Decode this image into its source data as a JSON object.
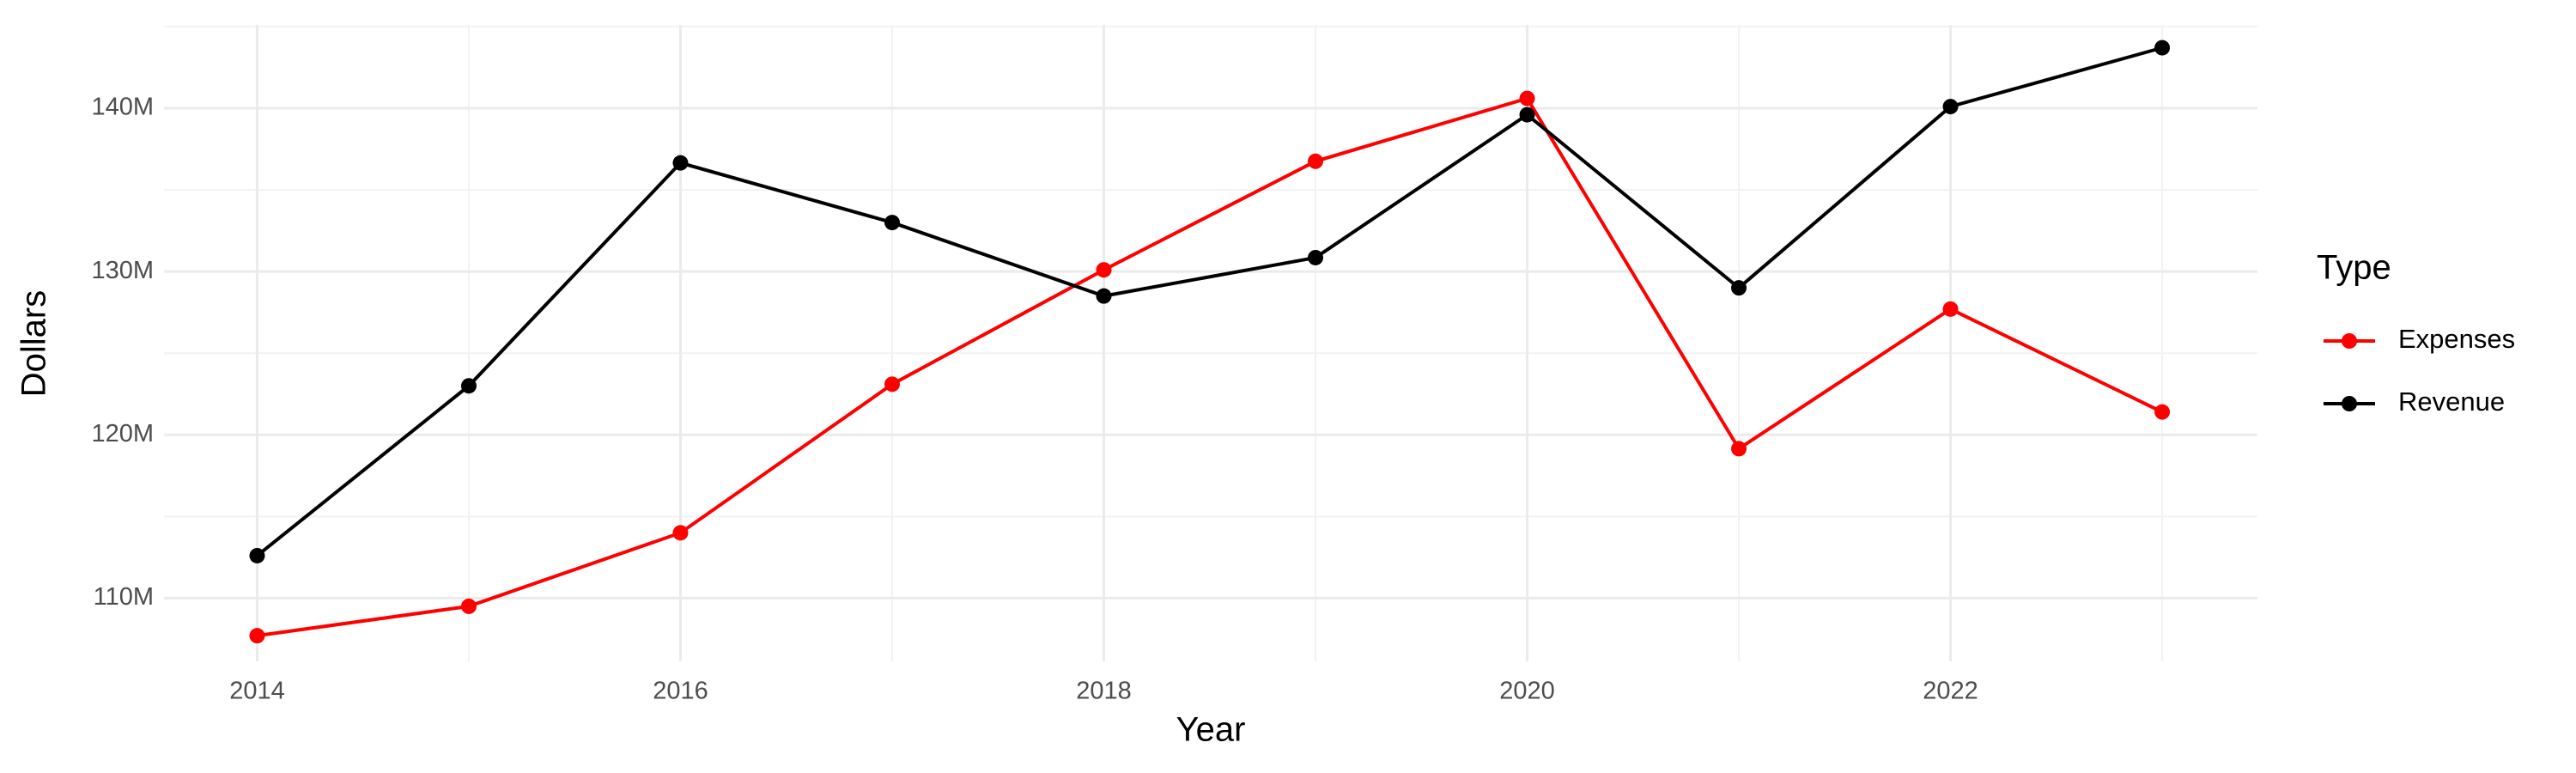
{
  "chart_data": {
    "type": "line",
    "x_label": "Year",
    "y_label": "Dollars",
    "legend_title": "Type",
    "x": [
      2014,
      2015,
      2016,
      2017,
      2018,
      2019,
      2020,
      2021,
      2022,
      2023
    ],
    "series": [
      {
        "name": "Expenses",
        "color": "#ff0000",
        "values": [
          107700000,
          109500000,
          114000000,
          123100000,
          130100000,
          136750000,
          140600000,
          119150000,
          127700000,
          121400000
        ]
      },
      {
        "name": "Revenue",
        "color": "#000000",
        "values": [
          112600000,
          123000000,
          136650000,
          133000000,
          128500000,
          130850000,
          139600000,
          129000000,
          140100000,
          143700000
        ]
      }
    ],
    "xlim": [
      2013.56,
      2023.45
    ],
    "xticks": [
      2014,
      2016,
      2018,
      2020,
      2022
    ],
    "ylim": [
      106130000,
      145100000
    ],
    "yticks": [
      {
        "value": 110000000,
        "label": "110M"
      },
      {
        "value": 120000000,
        "label": "120M"
      },
      {
        "value": 130000000,
        "label": "130M"
      },
      {
        "value": 140000000,
        "label": "140M"
      }
    ],
    "grid": true,
    "legend_position": "right"
  }
}
